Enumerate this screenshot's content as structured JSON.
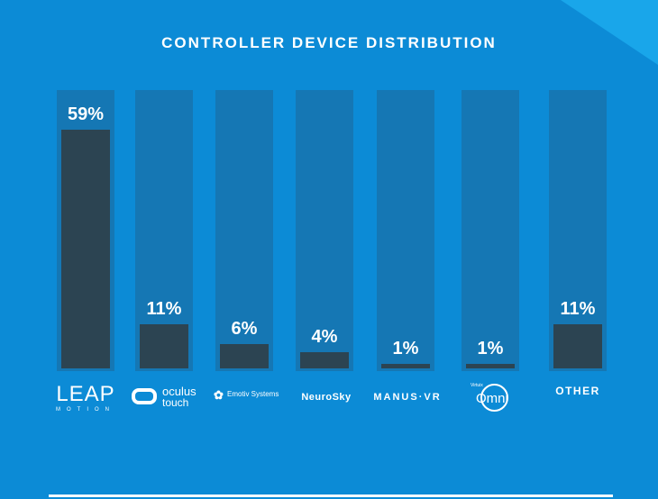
{
  "chart_data": {
    "type": "bar",
    "title": "CONTROLLER DEVICE DISTRIBUTION",
    "categories": [
      "Leap Motion",
      "Oculus Touch",
      "Emotiv Systems",
      "NeuroSky",
      "Manus VR",
      "Virtuix Omni",
      "Other"
    ],
    "values": [
      59,
      11,
      6,
      4,
      1,
      1,
      11
    ],
    "labels": [
      "59%",
      "11%",
      "6%",
      "4%",
      "1%",
      "1%",
      "11%"
    ],
    "ylim": [
      0,
      62
    ],
    "unit": "%",
    "xlabel": "",
    "ylabel": "",
    "grid": false,
    "legend": "none"
  },
  "logos": {
    "leap": {
      "main": "LEAP",
      "sub": "MOTION"
    },
    "oculus": {
      "main": "oculus",
      "sub": "touch"
    },
    "emotiv": {
      "main": "Emotiv Systems"
    },
    "neurosky": {
      "main": "NeuroSky"
    },
    "manus": {
      "main": "MANUS·VR"
    },
    "omni": {
      "small": "Virtuix",
      "main": "Omni"
    },
    "other": {
      "main": "OTHER"
    }
  },
  "colors": {
    "background": "#0c8bd6",
    "track": "#1577b4",
    "bar": "#2c4452",
    "text": "#ffffff"
  }
}
